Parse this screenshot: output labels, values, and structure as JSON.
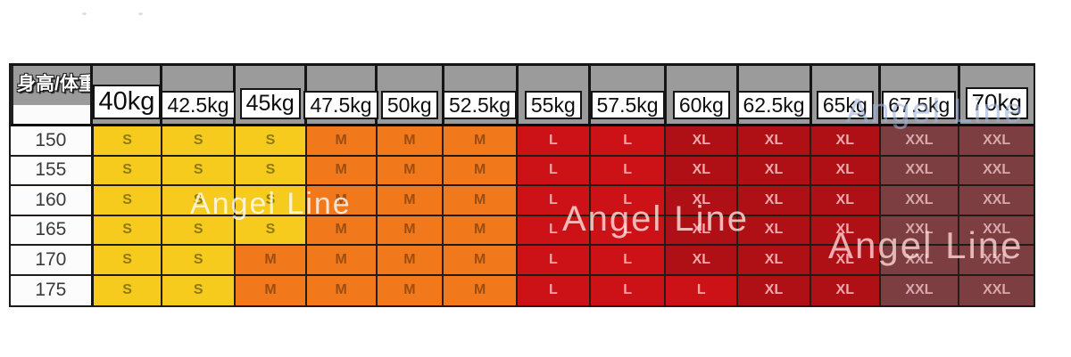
{
  "chart_data": {
    "type": "table",
    "title": "身高/体重",
    "columns": [
      "40kg",
      "42.5kg",
      "45kg",
      "47.5kg",
      "50kg",
      "52.5kg",
      "55kg",
      "57.5kg",
      "60kg",
      "62.5kg",
      "65kg",
      "67.5kg",
      "70kg"
    ],
    "row_labels": [
      "150",
      "155",
      "160",
      "165",
      "170",
      "175"
    ],
    "rows": [
      [
        "S",
        "S",
        "S",
        "M",
        "M",
        "M",
        "L",
        "L",
        "XL",
        "XL",
        "XL",
        "XXL",
        "XXL"
      ],
      [
        "S",
        "S",
        "S",
        "M",
        "M",
        "M",
        "L",
        "L",
        "XL",
        "XL",
        "XL",
        "XXL",
        "XXL"
      ],
      [
        "S",
        "S",
        "S",
        "M",
        "M",
        "M",
        "L",
        "L",
        "XL",
        "XL",
        "XL",
        "XXL",
        "XXL"
      ],
      [
        "S",
        "S",
        "S",
        "M",
        "M",
        "M",
        "L",
        "L",
        "XL",
        "XL",
        "XL",
        "XXL",
        "XXL"
      ],
      [
        "S",
        "S",
        "M",
        "M",
        "M",
        "M",
        "L",
        "L",
        "XL",
        "XL",
        "XL",
        "XXL",
        "XXL"
      ],
      [
        "S",
        "S",
        "M",
        "M",
        "M",
        "M",
        "L",
        "L",
        "L",
        "XL",
        "XL",
        "XXL",
        "XXL"
      ]
    ],
    "size_colors": {
      "S": {
        "bg": "#f6cb1d",
        "text": "#8f7a11"
      },
      "M": {
        "bg": "#f2791b",
        "text": "#9c4e12"
      },
      "L": {
        "bg": "#cc1217",
        "text": "#f2a3a3"
      },
      "XL": {
        "bg": "#af1015",
        "text": "#eda9ab"
      },
      "XXL": {
        "bg": "#7c3e41",
        "text": "#d8a8ab"
      }
    }
  },
  "colors": {
    "header_bg": "#9b9b9b",
    "label_box_bg": "#ffffff",
    "yellow": "#f6cb1d",
    "orange": "#f2791b",
    "red": "#cc1217",
    "dark_red": "#af1015",
    "maroon": "#7c3e41"
  },
  "watermarks": [
    {
      "id": "top-right",
      "text": "Angel Line",
      "color": "rgba(158,176,224,0.60)"
    },
    {
      "id": "mid-left",
      "text": "Angel Line",
      "color": "rgba(255,255,255,0.78)"
    },
    {
      "id": "center",
      "text": "Angel Line",
      "color": "rgba(255,226,226,0.80)"
    },
    {
      "id": "bottom-right",
      "text": "Angel Line",
      "color": "rgba(255,214,214,0.80)"
    }
  ]
}
